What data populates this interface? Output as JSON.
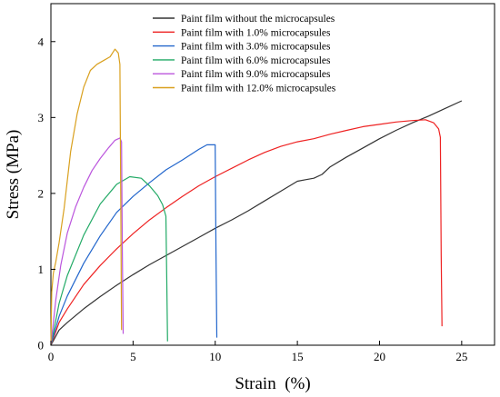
{
  "chart_data": {
    "type": "line",
    "title": "",
    "xlabel": "Strain  (%)",
    "ylabel": "Stress (MPa)",
    "xlim": [
      0,
      27
    ],
    "ylim": [
      0,
      4.5
    ],
    "xticks": [
      0,
      5,
      10,
      15,
      20,
      25
    ],
    "yticks": [
      0,
      1,
      2,
      3,
      4
    ],
    "grid": false,
    "legend_position": "top-center",
    "series": [
      {
        "name": "Paint film  without the microcapsules",
        "color": "#333333",
        "x": [
          0,
          0.5,
          1,
          2,
          3,
          4,
          5,
          6,
          7,
          8,
          9,
          10,
          11,
          12,
          13,
          14,
          15,
          15.5,
          16,
          16.5,
          17,
          18,
          19,
          20,
          21,
          22,
          23,
          24,
          25
        ],
        "y": [
          0,
          0.2,
          0.3,
          0.48,
          0.64,
          0.79,
          0.93,
          1.06,
          1.18,
          1.3,
          1.42,
          1.54,
          1.65,
          1.77,
          1.9,
          2.03,
          2.16,
          2.18,
          2.2,
          2.25,
          2.35,
          2.48,
          2.6,
          2.72,
          2.83,
          2.93,
          3.02,
          3.12,
          3.22
        ]
      },
      {
        "name": "Paint film  with 1.0% microcapsules",
        "color": "#ee2222",
        "x": [
          0,
          0.5,
          1,
          2,
          3,
          4,
          5,
          6,
          7,
          8,
          9,
          10,
          11,
          12,
          13,
          14,
          15,
          16,
          17,
          18,
          19,
          20,
          21,
          22,
          22.8,
          23.3,
          23.6,
          23.7,
          23.75,
          23.8
        ],
        "y": [
          0,
          0.3,
          0.48,
          0.8,
          1.05,
          1.27,
          1.47,
          1.65,
          1.81,
          1.96,
          2.1,
          2.22,
          2.33,
          2.44,
          2.54,
          2.62,
          2.68,
          2.72,
          2.78,
          2.83,
          2.88,
          2.91,
          2.94,
          2.96,
          2.97,
          2.93,
          2.85,
          2.74,
          1.2,
          0.25
        ]
      },
      {
        "name": "Paint film  with 3.0% microcapsules",
        "color": "#2266cc",
        "x": [
          0,
          0.5,
          1,
          2,
          3,
          4,
          5,
          6,
          7,
          8,
          9,
          9.5,
          10,
          10.05,
          10.1
        ],
        "y": [
          0,
          0.38,
          0.65,
          1.08,
          1.44,
          1.75,
          1.96,
          2.14,
          2.31,
          2.44,
          2.58,
          2.64,
          2.64,
          1.2,
          0.1
        ]
      },
      {
        "name": "Paint film  with 6.0% microcapsules",
        "color": "#22aa66",
        "x": [
          0,
          0.5,
          1,
          2,
          3,
          4,
          4.8,
          5.5,
          6,
          6.5,
          6.8,
          7.0,
          7.05,
          7.1
        ],
        "y": [
          0,
          0.55,
          0.92,
          1.45,
          1.86,
          2.12,
          2.22,
          2.2,
          2.1,
          1.97,
          1.85,
          1.7,
          0.9,
          0.05
        ]
      },
      {
        "name": "Paint film  with 9.0% microcapsules",
        "color": "#bb55dd",
        "x": [
          0,
          0.3,
          0.6,
          1,
          1.5,
          2,
          2.5,
          3,
          3.5,
          3.9,
          4.2,
          4.3,
          4.35,
          4.4
        ],
        "y": [
          0,
          0.6,
          1.05,
          1.48,
          1.82,
          2.08,
          2.3,
          2.46,
          2.6,
          2.7,
          2.73,
          2.68,
          1.2,
          0.15
        ]
      },
      {
        "name": "Paint film  with 12.0% microcapsules",
        "color": "#d9a01e",
        "x": [
          0,
          0.05,
          0.15,
          0.3,
          0.5,
          0.8,
          1.2,
          1.6,
          2.0,
          2.4,
          2.8,
          3.2,
          3.6,
          3.9,
          4.1,
          4.2,
          4.25,
          4.3
        ],
        "y": [
          0,
          0.7,
          0.95,
          1.1,
          1.35,
          1.8,
          2.55,
          3.05,
          3.4,
          3.62,
          3.7,
          3.75,
          3.8,
          3.9,
          3.85,
          3.7,
          2.0,
          0.2
        ]
      }
    ]
  }
}
